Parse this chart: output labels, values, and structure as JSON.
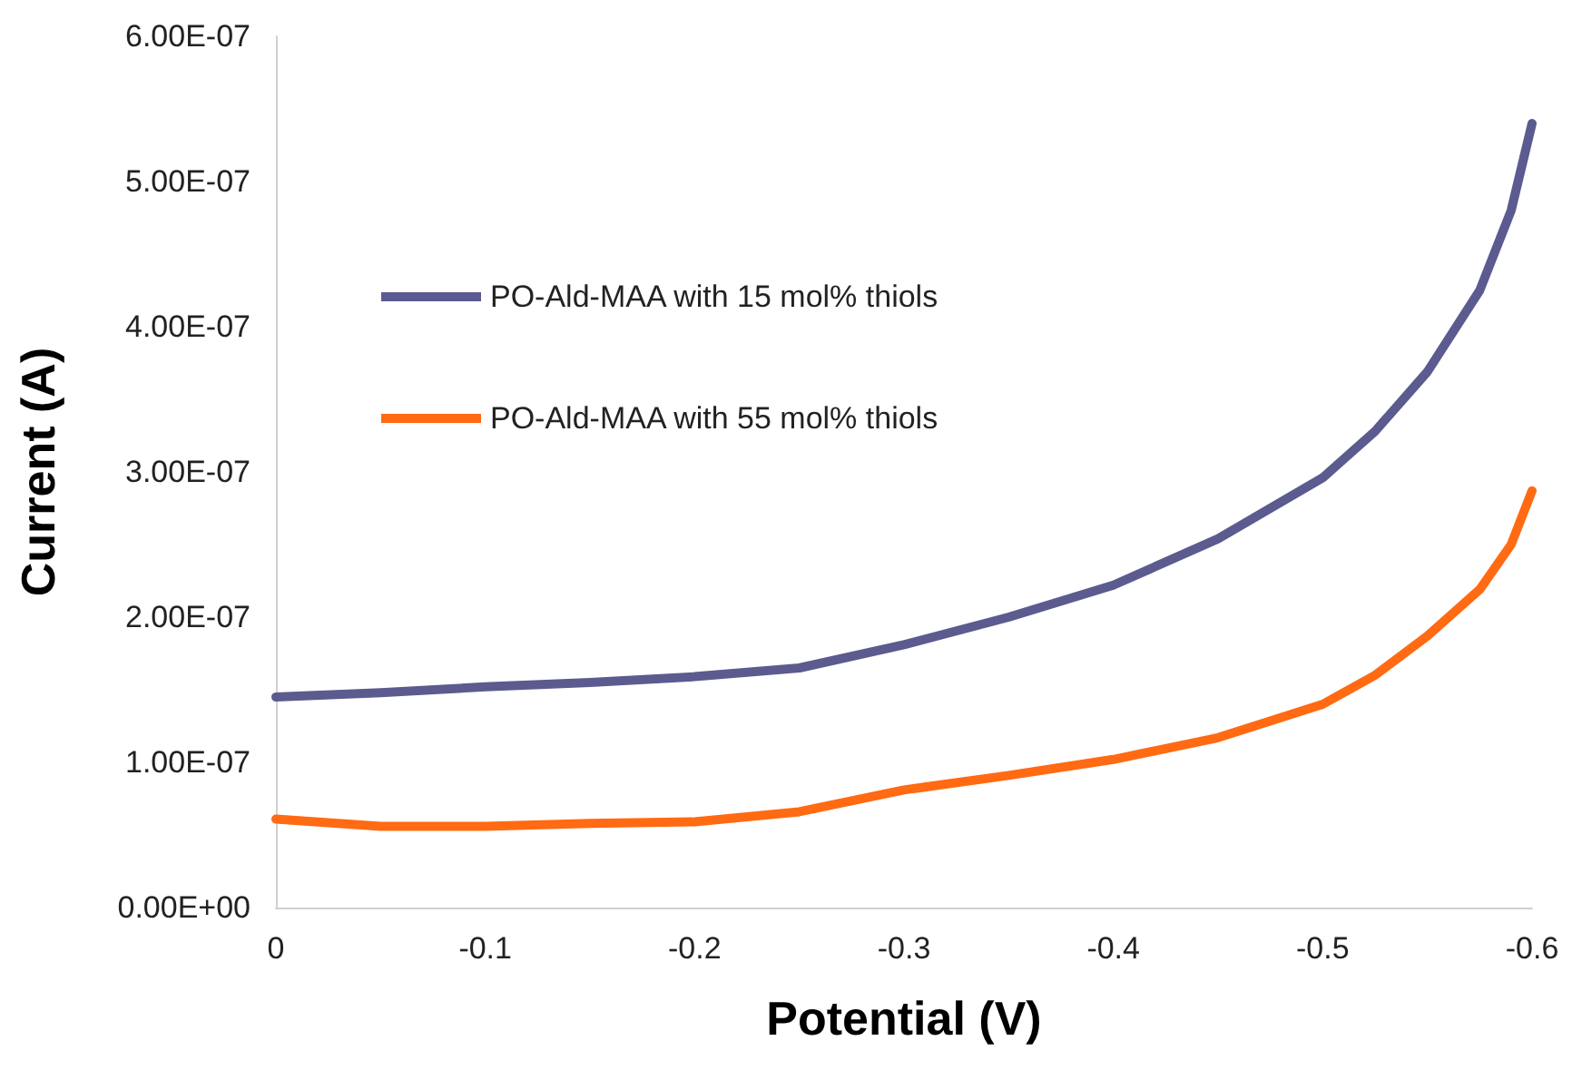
{
  "chart_data": {
    "type": "line",
    "xlabel": "Potential (V)",
    "ylabel": "Current (A)",
    "x": [
      0,
      -0.05,
      -0.1,
      -0.15,
      -0.2,
      -0.25,
      -0.3,
      -0.35,
      -0.4,
      -0.45,
      -0.5,
      -0.525,
      -0.55,
      -0.575,
      -0.59,
      -0.6
    ],
    "series": [
      {
        "name": "PO-Ald-MAA with 15 mol% thiols",
        "color": "#5b5b8f",
        "values": [
          1.45e-07,
          1.48e-07,
          1.52e-07,
          1.55e-07,
          1.59e-07,
          1.65e-07,
          1.81e-07,
          2e-07,
          2.22e-07,
          2.54e-07,
          2.96e-07,
          3.28e-07,
          3.69e-07,
          4.25e-07,
          4.8e-07,
          5.4e-07
        ]
      },
      {
        "name": "PO-Ald-MAA with 55 mol% thiols",
        "color": "#ff6a13",
        "values": [
          6.1e-08,
          5.6e-08,
          5.6e-08,
          5.8e-08,
          5.9e-08,
          6.6e-08,
          8.1e-08,
          9.1e-08,
          1.02e-07,
          1.17e-07,
          1.4e-07,
          1.6e-07,
          1.87e-07,
          2.19e-07,
          2.5e-07,
          2.87e-07
        ]
      }
    ],
    "xlim": [
      0,
      -0.6
    ],
    "xticks": [
      0,
      -0.1,
      -0.2,
      -0.3,
      -0.4,
      -0.5,
      -0.6
    ],
    "ylim": [
      0,
      6e-07
    ],
    "yticks": [
      {
        "value": 0,
        "label": "0.00E+00"
      },
      {
        "value": 1e-07,
        "label": "1.00E-07"
      },
      {
        "value": 2e-07,
        "label": "2.00E-07"
      },
      {
        "value": 3e-07,
        "label": "3.00E-07"
      },
      {
        "value": 4e-07,
        "label": "4.00E-07"
      },
      {
        "value": 5e-07,
        "label": "5.00E-07"
      },
      {
        "value": 6e-07,
        "label": "6.00E-07"
      }
    ],
    "grid": false,
    "legend": "top left",
    "marker": "none",
    "line_style": "solid"
  }
}
